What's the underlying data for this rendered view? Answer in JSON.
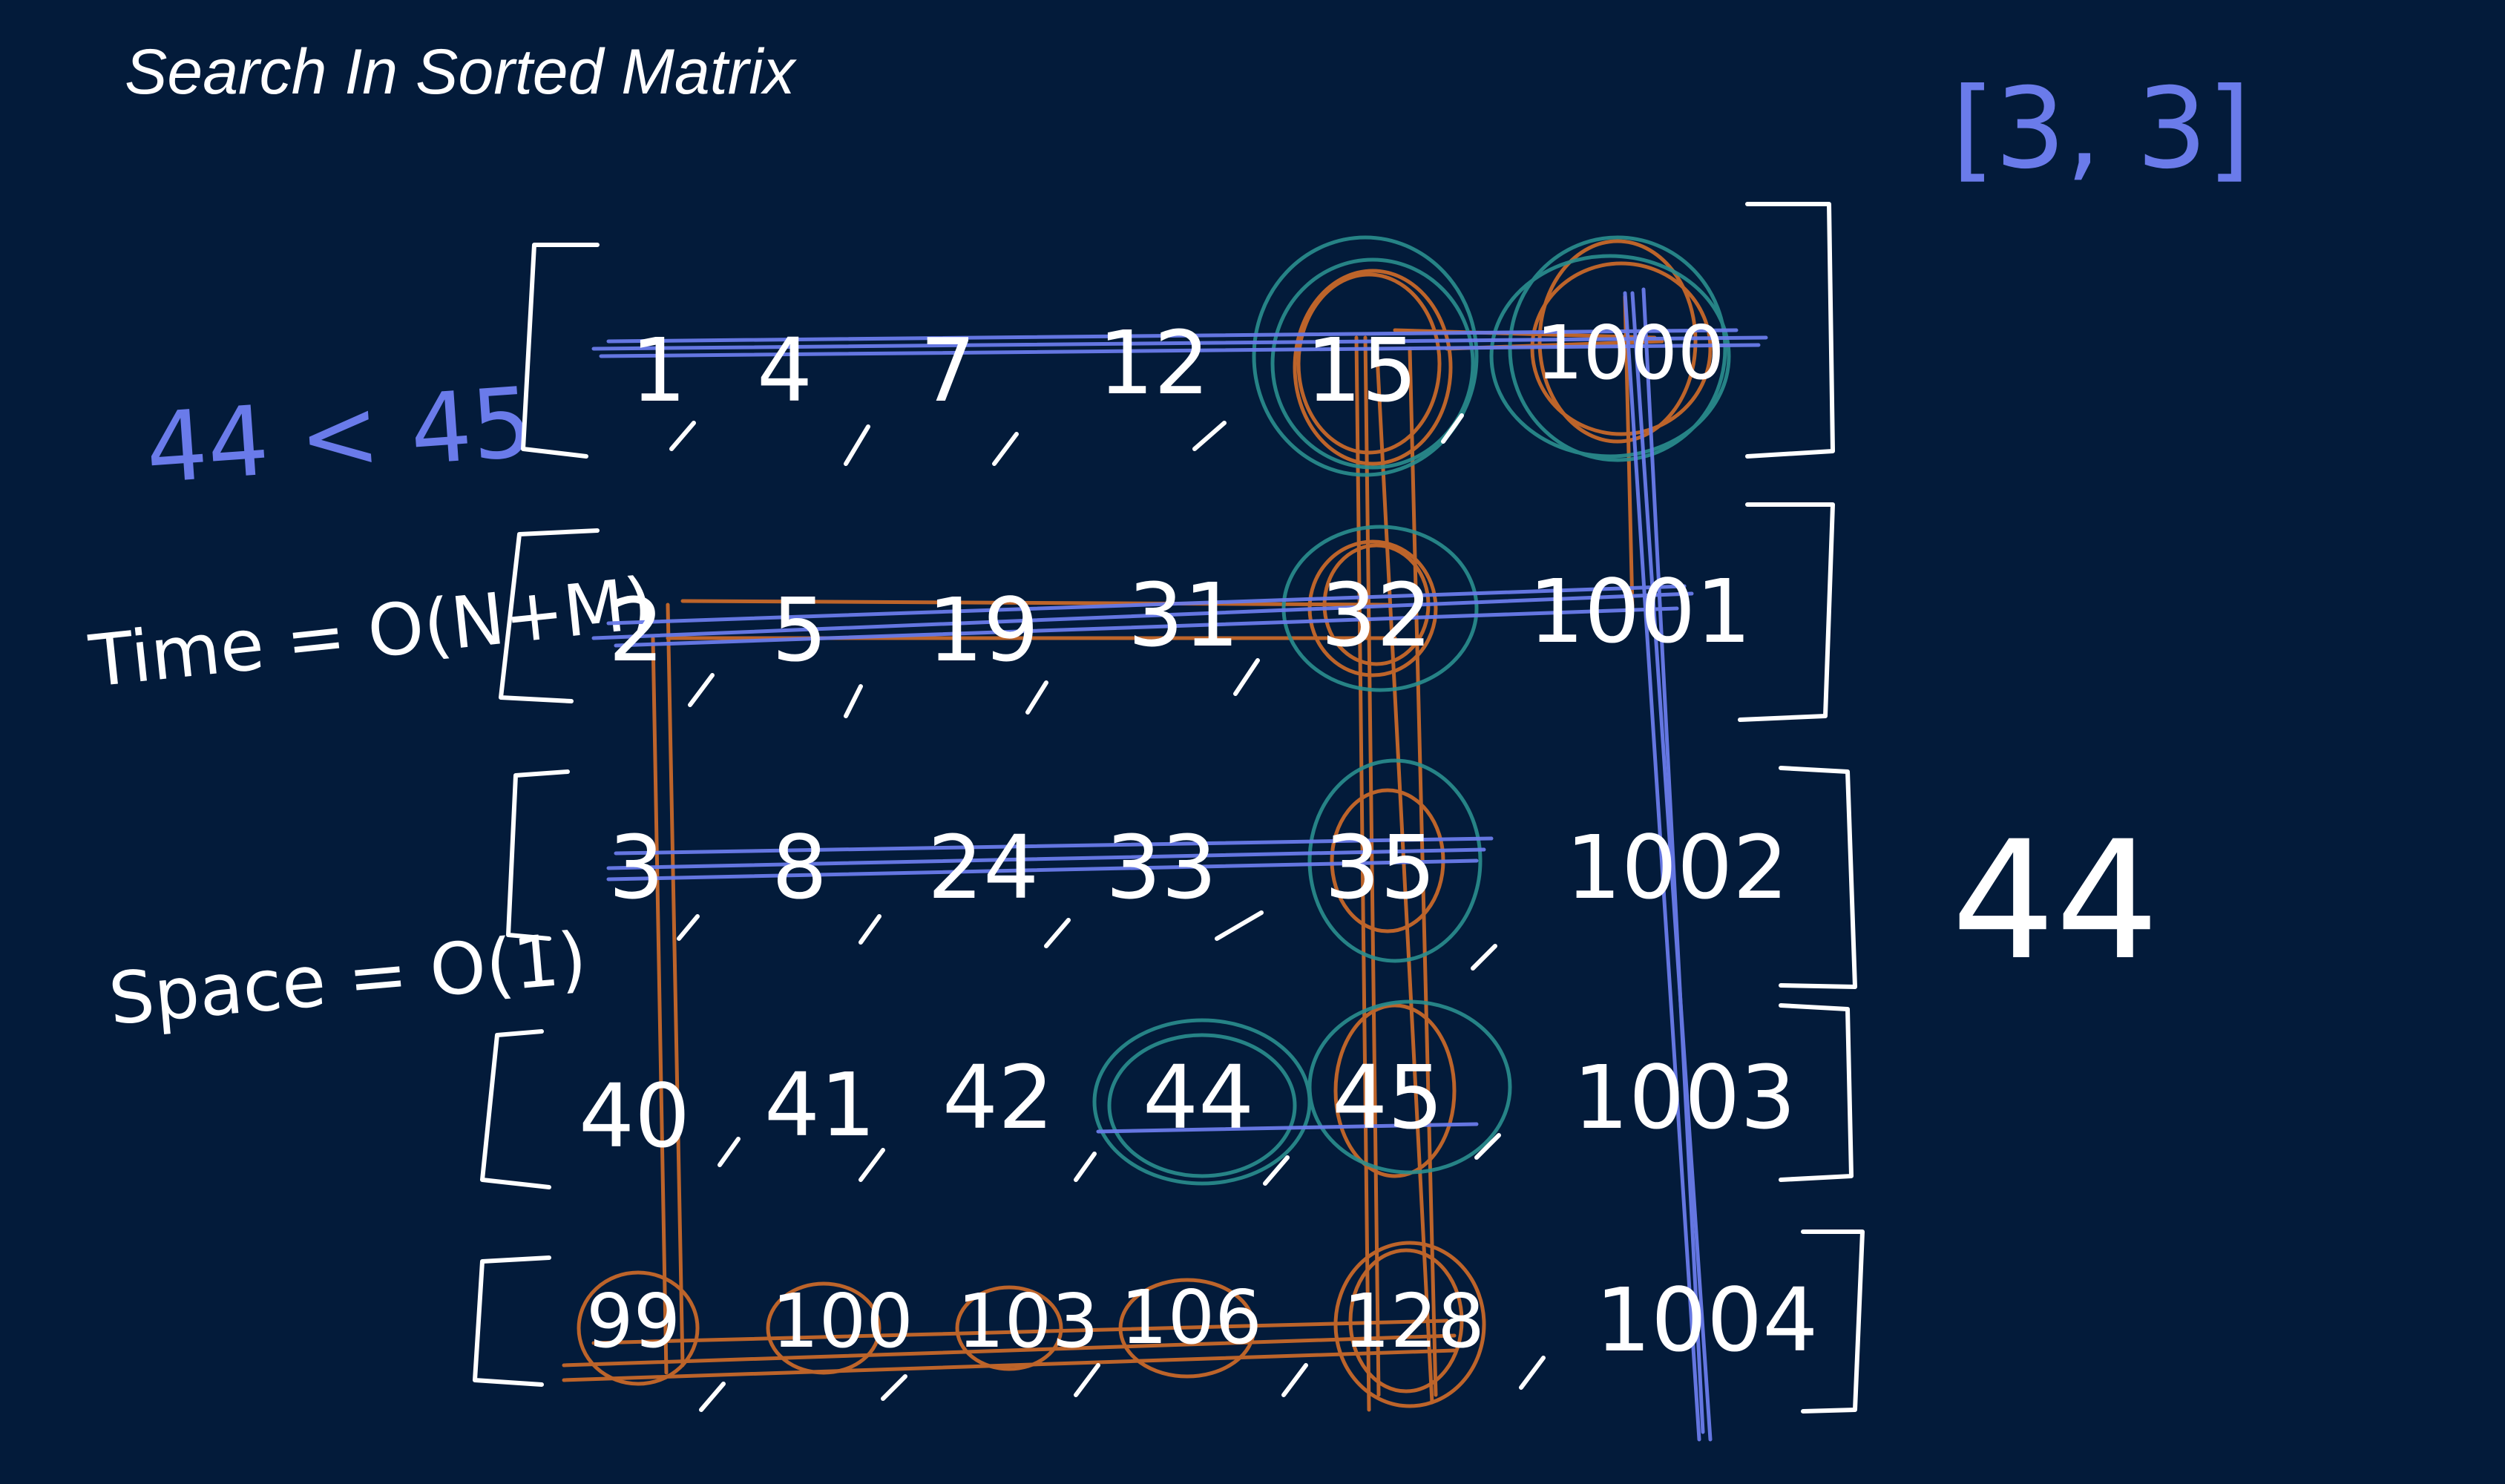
{
  "title": "Search In Sorted Matrix",
  "result": "[3, 3]",
  "comparison": "44 < 45",
  "time": "Time = O(N+M)",
  "space": "Space = O(1)",
  "target": "44",
  "matrix": [
    [
      "1",
      "4",
      "7",
      "12",
      "15",
      "1000"
    ],
    [
      "2",
      "5",
      "19",
      "31",
      "32",
      "1001"
    ],
    [
      "3",
      "8",
      "24",
      "33",
      "35",
      "1002"
    ],
    [
      "40",
      "41",
      "42",
      "44",
      "45",
      "1003"
    ],
    [
      "99",
      "100",
      "103",
      "106",
      "128",
      "1004"
    ]
  ],
  "colors": {
    "background": "#031b3a",
    "ink_white": "#ffffff",
    "ink_blue": "#6a7bea",
    "ink_orange": "#c8682a",
    "ink_teal": "#2a8f8f"
  }
}
